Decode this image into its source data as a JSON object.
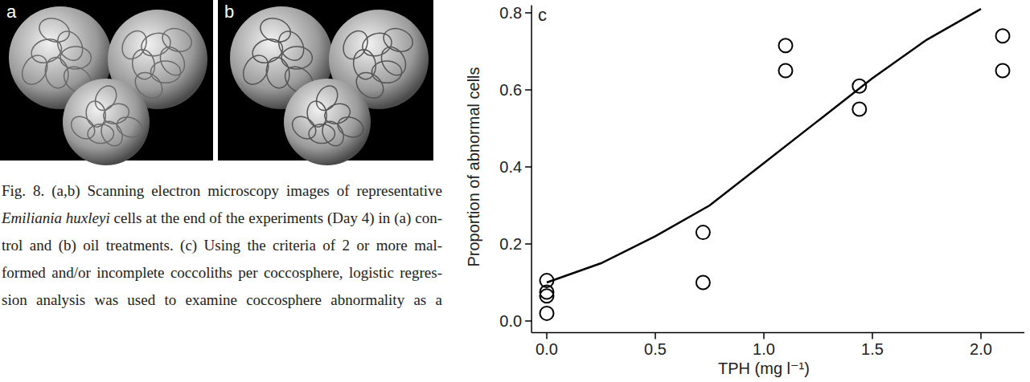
{
  "panels": [
    {
      "label": "a"
    },
    {
      "label": "b"
    }
  ],
  "caption": {
    "lines": [
      [
        {
          "text": "Fig. 8. (a,b) Scanning electron microscopy images of representative"
        }
      ],
      [
        {
          "text": "Emiliania huxleyi",
          "style": "italic"
        },
        {
          "text": " cells at the end of the experiments (Day 4) in (a) con-"
        }
      ],
      [
        {
          "text": "trol and (b) oil treatments. (c) Using the criteria of 2 or more mal-"
        }
      ],
      [
        {
          "text": "formed and/or incomplete coccoliths per coccosphere, logistic regres-"
        }
      ],
      [
        {
          "text": "sion analysis was used to examine coccosphere abnormality as a"
        }
      ]
    ]
  },
  "chart_data": {
    "type": "scatter",
    "panel_label": "c",
    "x_label": "TPH (mg l⁻¹)",
    "y_label": "Proportion of abnormal cells",
    "xlim": [
      -0.07,
      2.2
    ],
    "ylim": [
      -0.03,
      0.82
    ],
    "xticks": [
      {
        "value": 0,
        "label": "0.0"
      },
      {
        "value": 0.5,
        "label": "0.5"
      },
      {
        "value": 1,
        "label": "1.0"
      },
      {
        "value": 1.5,
        "label": "1.5"
      },
      {
        "value": 2,
        "label": "2.0"
      }
    ],
    "yticks": [
      {
        "value": 0,
        "label": "0.0"
      },
      {
        "value": 0.2,
        "label": "0.2"
      },
      {
        "value": 0.4,
        "label": "0.4"
      },
      {
        "value": 0.6,
        "label": "0.6"
      },
      {
        "value": 0.8,
        "label": "0.8"
      }
    ],
    "grid": false,
    "series": [
      {
        "type": "scatter",
        "marker": "circle",
        "color": "#000000",
        "x": [
          0,
          0,
          0,
          0,
          0.72,
          0.72,
          1.1,
          1.1,
          1.44,
          1.44,
          2.1,
          2.1
        ],
        "values": [
          0.105,
          0.075,
          0.065,
          0.02,
          0.23,
          0.1,
          0.715,
          0.65,
          0.61,
          0.55,
          0.74,
          0.65
        ]
      },
      {
        "type": "line",
        "line_style": "solid",
        "color": "#000000",
        "x": [
          0,
          0.25,
          0.5,
          0.75,
          1,
          1.25,
          1.5,
          1.75,
          2
        ],
        "values": [
          0.1,
          0.15,
          0.22,
          0.3,
          0.41,
          0.52,
          0.63,
          0.73,
          0.81
        ]
      }
    ]
  }
}
